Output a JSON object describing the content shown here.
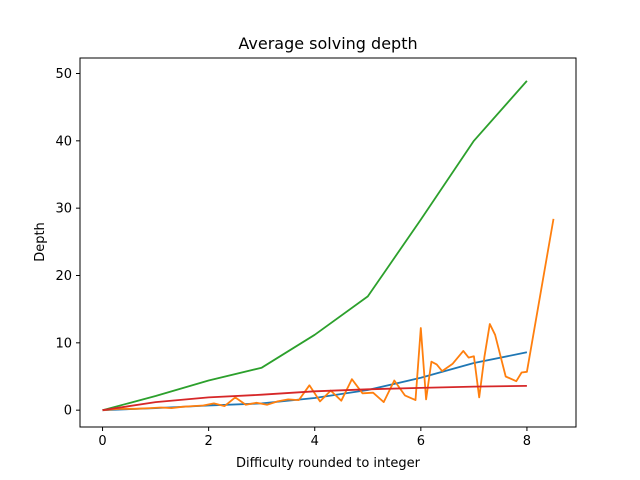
{
  "chart_data": {
    "type": "line",
    "title": "Average solving depth",
    "xlabel": "Difficulty rounded to integer",
    "ylabel": "Depth",
    "xlim": [
      -0.425,
      8.925
    ],
    "ylim": [
      -2.5,
      52.3
    ],
    "xticks": [
      0,
      2,
      4,
      6,
      8
    ],
    "yticks": [
      0,
      10,
      20,
      30,
      40,
      50
    ],
    "grid": false,
    "series": [
      {
        "color": "#1f77b4",
        "x": [
          0,
          1,
          2,
          3,
          4,
          5,
          6,
          7,
          8
        ],
        "y": [
          0.0,
          0.3,
          0.7,
          1.0,
          1.8,
          3.0,
          4.8,
          7.0,
          8.6
        ]
      },
      {
        "color": "#ff7f0e",
        "x": [
          0,
          0.3,
          0.6,
          0.9,
          1.1,
          1.3,
          1.5,
          1.7,
          1.9,
          2.1,
          2.3,
          2.5,
          2.7,
          2.9,
          3.1,
          3.3,
          3.5,
          3.7,
          3.9,
          4.1,
          4.3,
          4.5,
          4.7,
          4.9,
          5.1,
          5.3,
          5.5,
          5.7,
          5.9,
          6.0,
          6.1,
          6.2,
          6.3,
          6.4,
          6.6,
          6.8,
          6.9,
          7.0,
          7.1,
          7.2,
          7.3,
          7.4,
          7.6,
          7.8,
          7.9,
          8.0,
          8.5
        ],
        "y": [
          0.0,
          0.2,
          0.2,
          0.3,
          0.4,
          0.3,
          0.5,
          0.6,
          0.7,
          1.0,
          0.6,
          1.9,
          0.8,
          1.1,
          0.8,
          1.3,
          1.6,
          1.5,
          3.7,
          1.3,
          2.9,
          1.4,
          4.6,
          2.5,
          2.6,
          1.2,
          4.4,
          2.2,
          1.5,
          12.2,
          1.6,
          7.2,
          6.8,
          5.8,
          6.9,
          8.8,
          7.8,
          8.0,
          1.9,
          8.0,
          12.8,
          11.2,
          5.0,
          4.3,
          5.6,
          5.7,
          28.4
        ]
      },
      {
        "color": "#2ca02c",
        "x": [
          0,
          1,
          2,
          3,
          4,
          5,
          6,
          7,
          8
        ],
        "y": [
          0.0,
          2.1,
          4.4,
          6.3,
          11.2,
          16.9,
          28.3,
          40.0,
          48.9
        ]
      },
      {
        "color": "#d62728",
        "x": [
          0,
          1,
          2,
          3,
          4,
          5,
          6,
          7,
          8
        ],
        "y": [
          0.0,
          1.2,
          1.9,
          2.3,
          2.8,
          3.1,
          3.3,
          3.5,
          3.6
        ]
      }
    ]
  }
}
